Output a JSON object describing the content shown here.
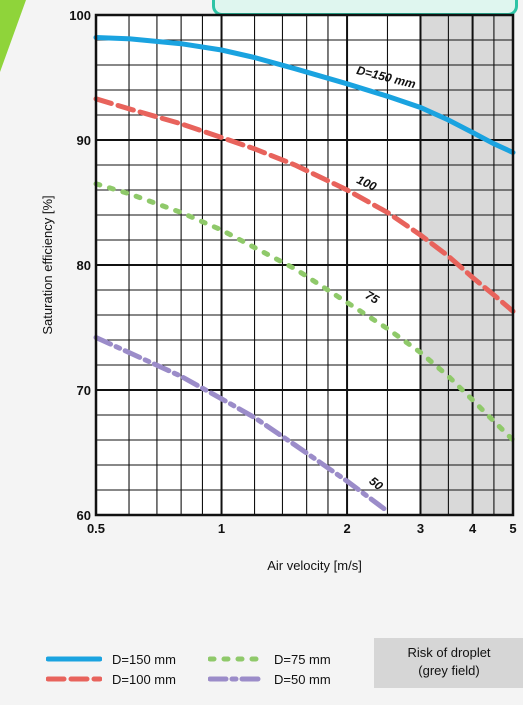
{
  "chart_data": {
    "type": "line",
    "xscale": "log",
    "xlim": [
      0.5,
      5
    ],
    "ylim": [
      60,
      100
    ],
    "x_ticks": [
      0.5,
      1,
      2,
      3,
      4,
      5
    ],
    "x_tick_labels": [
      "0.5",
      "1",
      "2",
      "3",
      "4",
      "5"
    ],
    "y_ticks": [
      60,
      70,
      80,
      90,
      100
    ],
    "y_tick_labels": [
      "60",
      "70",
      "80",
      "90",
      "100"
    ],
    "xlabel": "Air velocity [m/s]",
    "ylabel": "Saturation efficiency [%]",
    "grid": true,
    "shaded_region": {
      "x_from": 3,
      "x_to": 5,
      "color": "#d9d9d9",
      "label": "Risk of droplet (grey field)"
    },
    "series": [
      {
        "name": "D=150 mm",
        "curve_label": "D=150 mm",
        "color": "#1aa3e0",
        "style": "solid",
        "x": [
          0.5,
          0.6,
          0.8,
          1,
          1.2,
          1.5,
          2,
          2.5,
          3,
          3.5,
          4,
          4.5,
          5
        ],
        "y": [
          98.2,
          98.1,
          97.7,
          97.2,
          96.6,
          95.7,
          94.5,
          93.5,
          92.6,
          91.6,
          90.6,
          89.7,
          89.0
        ]
      },
      {
        "name": "D=100 mm",
        "curve_label": "100",
        "color": "#e8635c",
        "style": "dashed",
        "x": [
          0.5,
          0.6,
          0.8,
          1,
          1.2,
          1.5,
          2,
          2.5,
          3,
          3.5,
          4,
          4.5,
          5
        ],
        "y": [
          93.3,
          92.5,
          91.3,
          90.2,
          89.3,
          88.0,
          86.0,
          84.2,
          82.4,
          80.7,
          79.0,
          77.6,
          76.3
        ]
      },
      {
        "name": "D=75 mm",
        "curve_label": "75",
        "color": "#8fc96a",
        "style": "dotted",
        "x": [
          0.5,
          0.6,
          0.8,
          1,
          1.2,
          1.5,
          2,
          2.5,
          3,
          3.5,
          4,
          4.5,
          5
        ],
        "y": [
          86.5,
          85.7,
          84.2,
          82.8,
          81.4,
          79.7,
          77.0,
          74.9,
          73.0,
          71.1,
          69.2,
          67.5,
          66.0
        ]
      },
      {
        "name": "D=50 mm",
        "curve_label": "50",
        "color": "#9b8cc9",
        "style": "dashdot",
        "x": [
          0.5,
          0.6,
          0.8,
          1,
          1.2,
          1.5,
          2,
          2.3,
          2.5
        ],
        "y": [
          74.2,
          73.0,
          71.1,
          69.3,
          67.8,
          65.6,
          62.7,
          61.2,
          60.3
        ]
      }
    ]
  },
  "legend": {
    "items": [
      {
        "label": "D=150 mm",
        "color": "#1aa3e0",
        "style": "solid"
      },
      {
        "label": "D=100 mm",
        "color": "#e8635c",
        "style": "dashed"
      },
      {
        "label": "D=75 mm",
        "color": "#8fc96a",
        "style": "dotted"
      },
      {
        "label": "D=50 mm",
        "color": "#9b8cc9",
        "style": "dashdot"
      }
    ],
    "risk_line1": "Risk of droplet",
    "risk_line2": "(grey field)"
  }
}
